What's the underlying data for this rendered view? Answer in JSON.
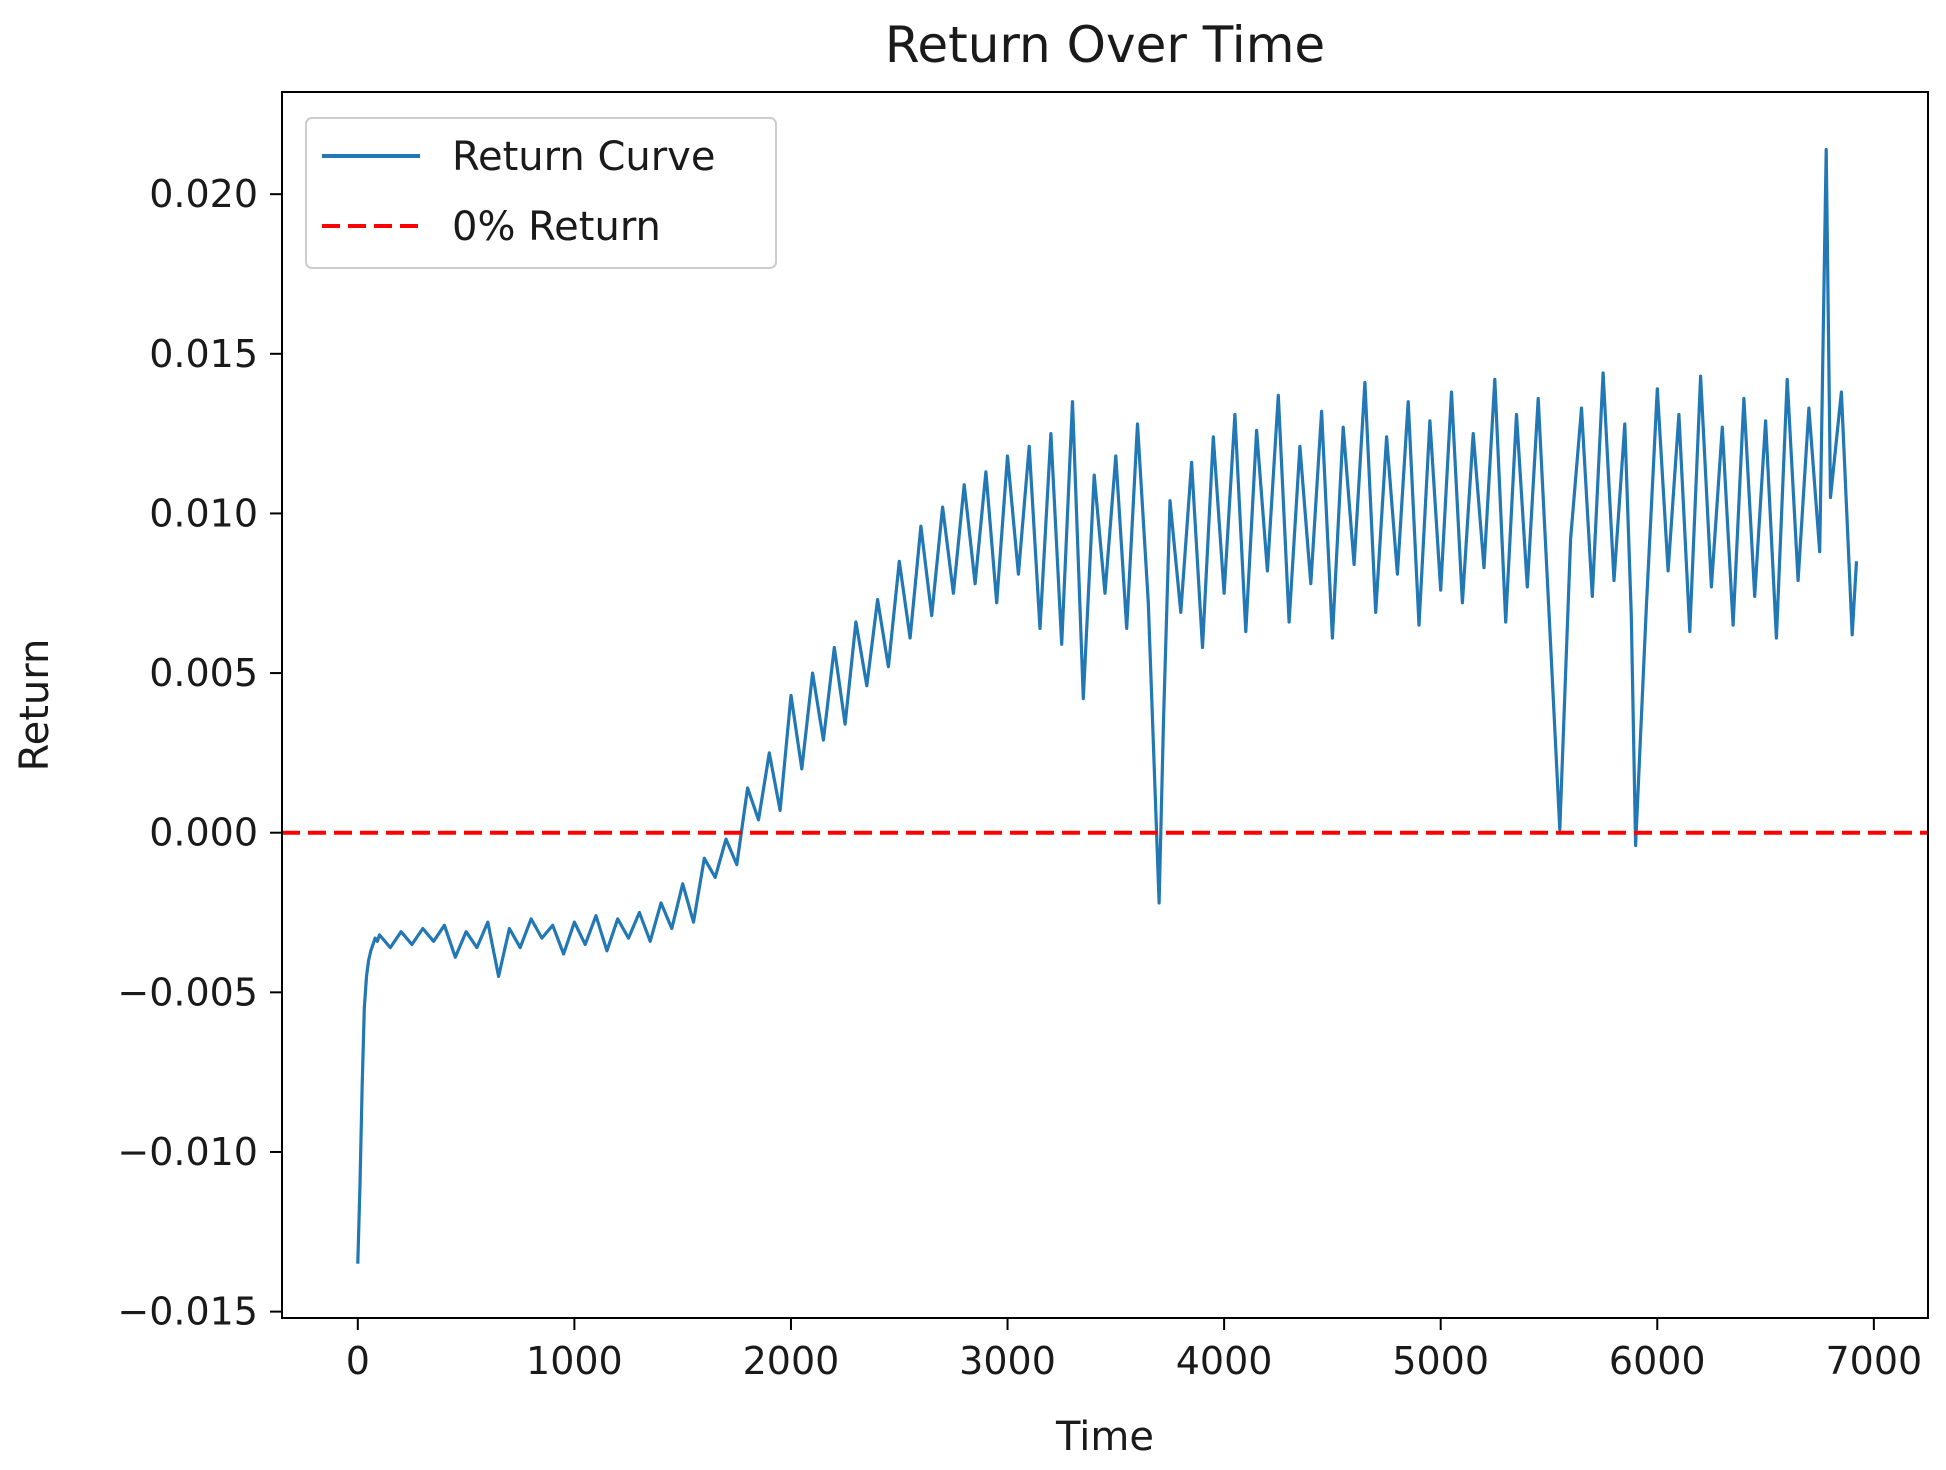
{
  "chart_data": {
    "type": "line",
    "title": "Return Over Time",
    "xlabel": "Time",
    "ylabel": "Return",
    "xlim": [
      -350,
      7250
    ],
    "ylim": [
      -0.0152,
      0.0232
    ],
    "grid": false,
    "legend_position": "top-left",
    "x_ticks": [
      {
        "value": 0,
        "label": "0"
      },
      {
        "value": 1000,
        "label": "1000"
      },
      {
        "value": 2000,
        "label": "2000"
      },
      {
        "value": 3000,
        "label": "3000"
      },
      {
        "value": 4000,
        "label": "4000"
      },
      {
        "value": 5000,
        "label": "5000"
      },
      {
        "value": 6000,
        "label": "6000"
      },
      {
        "value": 7000,
        "label": "7000"
      }
    ],
    "y_ticks": [
      {
        "value": -0.015,
        "label": "−0.015"
      },
      {
        "value": -0.01,
        "label": "−0.010"
      },
      {
        "value": -0.005,
        "label": "−0.005"
      },
      {
        "value": 0.0,
        "label": "0.000"
      },
      {
        "value": 0.005,
        "label": "0.005"
      },
      {
        "value": 0.01,
        "label": "0.010"
      },
      {
        "value": 0.015,
        "label": "0.015"
      },
      {
        "value": 0.02,
        "label": "0.020"
      }
    ],
    "series": [
      {
        "name": "Return Curve",
        "color": "#2178b4",
        "style": "solid",
        "x": [
          0,
          10,
          20,
          30,
          40,
          50,
          60,
          70,
          80,
          90,
          100,
          150,
          200,
          250,
          300,
          350,
          400,
          450,
          500,
          550,
          600,
          650,
          700,
          750,
          800,
          850,
          900,
          950,
          1000,
          1050,
          1100,
          1150,
          1200,
          1250,
          1300,
          1350,
          1400,
          1450,
          1500,
          1550,
          1600,
          1650,
          1700,
          1750,
          1800,
          1850,
          1900,
          1950,
          2000,
          2050,
          2100,
          2150,
          2200,
          2250,
          2300,
          2350,
          2400,
          2450,
          2500,
          2550,
          2600,
          2650,
          2700,
          2750,
          2800,
          2850,
          2900,
          2950,
          3000,
          3050,
          3100,
          3150,
          3200,
          3250,
          3300,
          3350,
          3400,
          3450,
          3500,
          3550,
          3600,
          3650,
          3700,
          3720,
          3750,
          3800,
          3850,
          3900,
          3950,
          4000,
          4050,
          4100,
          4150,
          4200,
          4250,
          4300,
          4350,
          4400,
          4450,
          4500,
          4550,
          4600,
          4650,
          4700,
          4750,
          4800,
          4850,
          4900,
          4950,
          5000,
          5050,
          5100,
          5150,
          5200,
          5250,
          5300,
          5350,
          5400,
          5450,
          5500,
          5550,
          5600,
          5650,
          5700,
          5750,
          5800,
          5850,
          5880,
          5900,
          5950,
          6000,
          6050,
          6100,
          6150,
          6200,
          6250,
          6300,
          6350,
          6400,
          6450,
          6500,
          6550,
          6600,
          6650,
          6700,
          6750,
          6780,
          6800,
          6850,
          6900,
          6920
        ],
        "y": [
          -0.0135,
          -0.011,
          -0.008,
          -0.0055,
          -0.0045,
          -0.004,
          -0.0037,
          -0.0035,
          -0.0033,
          -0.0034,
          -0.0032,
          -0.0036,
          -0.0031,
          -0.0035,
          -0.003,
          -0.0034,
          -0.0029,
          -0.0039,
          -0.0031,
          -0.0036,
          -0.0028,
          -0.0045,
          -0.003,
          -0.0036,
          -0.0027,
          -0.0033,
          -0.0029,
          -0.0038,
          -0.0028,
          -0.0035,
          -0.0026,
          -0.0037,
          -0.0027,
          -0.0033,
          -0.0025,
          -0.0034,
          -0.0022,
          -0.003,
          -0.0016,
          -0.0028,
          -0.0008,
          -0.0014,
          -0.0002,
          -0.001,
          0.0014,
          0.0004,
          0.0025,
          0.0007,
          0.0043,
          0.002,
          0.005,
          0.0029,
          0.0058,
          0.0034,
          0.0066,
          0.0046,
          0.0073,
          0.0052,
          0.0085,
          0.0061,
          0.0096,
          0.0068,
          0.0102,
          0.0075,
          0.0109,
          0.0078,
          0.0113,
          0.0072,
          0.0118,
          0.0081,
          0.0121,
          0.0064,
          0.0125,
          0.0059,
          0.0135,
          0.0042,
          0.0112,
          0.0075,
          0.0118,
          0.0064,
          0.0128,
          0.0072,
          -0.0022,
          0.0035,
          0.0104,
          0.0069,
          0.0116,
          0.0058,
          0.0124,
          0.0075,
          0.0131,
          0.0063,
          0.0126,
          0.0082,
          0.0137,
          0.0066,
          0.0121,
          0.0078,
          0.0132,
          0.0061,
          0.0127,
          0.0084,
          0.0141,
          0.0069,
          0.0124,
          0.0081,
          0.0135,
          0.0065,
          0.0129,
          0.0076,
          0.0138,
          0.0072,
          0.0125,
          0.0083,
          0.0142,
          0.0066,
          0.0131,
          0.0077,
          0.0136,
          0.0069,
          0.0001,
          0.0092,
          0.0133,
          0.0074,
          0.0144,
          0.0079,
          0.0128,
          0.0068,
          -0.0004,
          0.0071,
          0.0139,
          0.0082,
          0.0131,
          0.0063,
          0.0143,
          0.0077,
          0.0127,
          0.0065,
          0.0136,
          0.0074,
          0.0129,
          0.0061,
          0.0142,
          0.0079,
          0.0133,
          0.0088,
          0.0214,
          0.0105,
          0.0138,
          0.0062,
          0.0085
        ]
      },
      {
        "name": "0% Return",
        "color": "#ff0000",
        "style": "dashed",
        "x": [
          -350,
          7250
        ],
        "y": [
          0.0,
          0.0
        ]
      }
    ]
  }
}
